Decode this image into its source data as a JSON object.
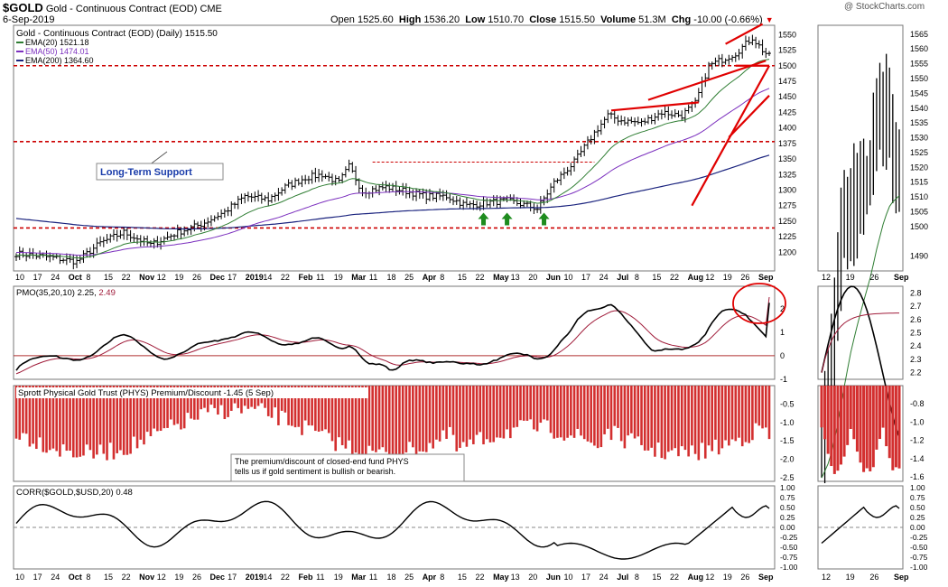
{
  "header": {
    "symbol": "$GOLD",
    "name": "Gold - Continuous Contract (EOD)",
    "exchange": "CME",
    "date": "6-Sep-2019",
    "open_label": "Open",
    "open": "1525.60",
    "high_label": "High",
    "high": "1536.20",
    "low_label": "Low",
    "low": "1510.70",
    "close_label": "Close",
    "close": "1515.50",
    "volume_label": "Volume",
    "volume": "51.3M",
    "chg_label": "Chg",
    "chg": "-10.00 (-0.66%)",
    "watermark": "@ StockCharts.com"
  },
  "colors": {
    "price_bar": "#000000",
    "ema20": "#2e7d32",
    "ema50": "#7b2fbe",
    "ema200": "#1a237e",
    "support_line": "#cc0000",
    "trend_line": "#e00000",
    "histogram": "#d32f2f",
    "pmo_signal": "#a01c3a",
    "arrow": "#1e8c1e",
    "label_blue": "#1a3caa"
  },
  "chart_data": [
    {
      "type": "line",
      "panel": "price",
      "title": "Gold - Continuous Contract (EOD) (Daily) 1515.50",
      "legend": [
        {
          "name": "EMA(20)",
          "value": "1521.18"
        },
        {
          "name": "EMA(50)",
          "value": "1474.01"
        },
        {
          "name": "EMA(200)",
          "value": "1364.60"
        }
      ],
      "y_ticks": [
        1200,
        1225,
        1250,
        1275,
        1300,
        1325,
        1350,
        1375,
        1400,
        1425,
        1450,
        1475,
        1500,
        1525,
        1550
      ],
      "ylim": [
        1170,
        1565
      ],
      "x_labels": [
        "10",
        "17",
        "24",
        "Oct",
        "8",
        "15",
        "22",
        "Nov",
        "12",
        "19",
        "26",
        "Dec",
        "17",
        "2019",
        "14",
        "22",
        "Feb",
        "11",
        "19",
        "Mar",
        "11",
        "18",
        "25",
        "Apr",
        "8",
        "15",
        "22",
        "May",
        "13",
        "20",
        "Jun",
        "10",
        "17",
        "24",
        "Jul",
        "8",
        "15",
        "22",
        "Aug",
        "12",
        "19",
        "26",
        "Sep"
      ],
      "close_anchors": [
        [
          0,
          1198
        ],
        [
          10,
          1192
        ],
        [
          18,
          1185
        ],
        [
          25,
          1215
        ],
        [
          32,
          1232
        ],
        [
          40,
          1212
        ],
        [
          48,
          1232
        ],
        [
          55,
          1245
        ],
        [
          62,
          1265
        ],
        [
          68,
          1290
        ],
        [
          75,
          1285
        ],
        [
          80,
          1305
        ],
        [
          86,
          1320
        ],
        [
          91,
          1325
        ],
        [
          96,
          1312
        ],
        [
          99,
          1338
        ],
        [
          103,
          1298
        ],
        [
          110,
          1305
        ],
        [
          116,
          1298
        ],
        [
          122,
          1290
        ],
        [
          128,
          1290
        ],
        [
          134,
          1275
        ],
        [
          140,
          1280
        ],
        [
          146,
          1283
        ],
        [
          152,
          1275
        ],
        [
          155,
          1270
        ],
        [
          160,
          1312
        ],
        [
          166,
          1345
        ],
        [
          172,
          1392
        ],
        [
          176,
          1420
        ],
        [
          180,
          1412
        ],
        [
          186,
          1408
        ],
        [
          192,
          1425
        ],
        [
          198,
          1420
        ],
        [
          202,
          1440
        ],
        [
          206,
          1500
        ],
        [
          210,
          1510
        ],
        [
          214,
          1520
        ],
        [
          219,
          1545
        ],
        [
          222,
          1525
        ],
        [
          224,
          1515
        ]
      ],
      "ema20_last": 1521.18,
      "ema50_last": 1474.01,
      "ema200_last": 1364.6,
      "support_levels": [
        1239,
        1378,
        1500
      ],
      "annotations": [
        "Long-Term Support"
      ]
    },
    {
      "type": "line",
      "panel": "pmo",
      "title": "PMO(35,20,10) 2.25, 2.49",
      "pmo": 2.25,
      "signal": 2.49,
      "y_ticks": [
        -1,
        0,
        1,
        2
      ],
      "ylim": [
        -1.0,
        2.95
      ],
      "inset_y_ticks": [
        2.2,
        2.3,
        2.4,
        2.5,
        2.6,
        2.7,
        2.8
      ]
    },
    {
      "type": "bar",
      "panel": "phys",
      "title": "Sprott Physical Gold Trust (PHYS) Premium/Discount -1.45 (5 Sep)",
      "last_value": -1.45,
      "y_ticks": [
        -0.5,
        -1.0,
        -1.5,
        -2.0,
        -2.5
      ],
      "ylim": [
        -2.6,
        0
      ],
      "inset_y_ticks": [
        -0.8,
        -1.0,
        -1.2,
        -1.4,
        -1.6
      ],
      "annotation": "The premium/discount of closed-end fund PHYS tells us if gold sentiment is bullish or bearish."
    },
    {
      "type": "line",
      "panel": "corr",
      "title": "CORR($GOLD,$USD,20) 0.48",
      "last_value": 0.48,
      "y_ticks": [
        1.0,
        0.75,
        0.5,
        0.25,
        0.0,
        -0.25,
        -0.5,
        -0.75,
        -1.0
      ],
      "ylim": [
        -1.05,
        1.05
      ]
    }
  ],
  "inset": {
    "x_labels": [
      "12",
      "19",
      "26",
      "Sep"
    ],
    "price_ticks": [
      1490,
      1500,
      1505,
      1510,
      1515,
      1520,
      1525,
      1530,
      1535,
      1540,
      1545,
      1550,
      1555,
      1560,
      1565
    ]
  }
}
